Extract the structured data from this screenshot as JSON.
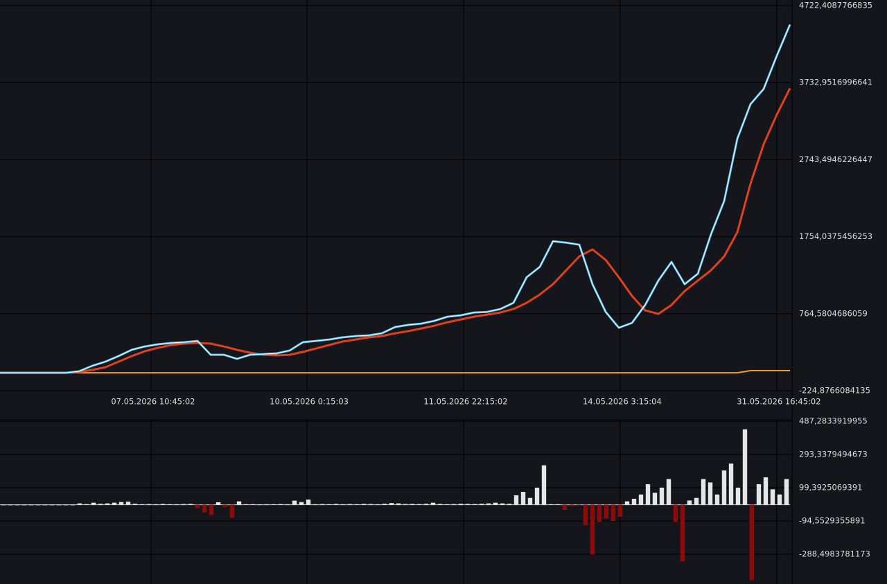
{
  "chart_data": [
    {
      "type": "line",
      "x": [
        0,
        1,
        2,
        3,
        4,
        5,
        6,
        7,
        8,
        9,
        10,
        11,
        12,
        13,
        14,
        15,
        16,
        17,
        18,
        19,
        20,
        21,
        22,
        23,
        24,
        25,
        26,
        27,
        28,
        29,
        30,
        31,
        32,
        33,
        34,
        35,
        36,
        37,
        38,
        39,
        40,
        41,
        42,
        43,
        44,
        45,
        46,
        47,
        48,
        49,
        50,
        51,
        52,
        53,
        54,
        55,
        56,
        57,
        58,
        59,
        60
      ],
      "series": [
        {
          "color": "#5bc0eb",
          "values": [
            6,
            6,
            6,
            6,
            6,
            6,
            24,
            95,
            148,
            220,
            300,
            344,
            371,
            389,
            398,
            415,
            237,
            237,
            184,
            237,
            246,
            255,
            291,
            398,
            415,
            433,
            460,
            477,
            486,
            513,
            593,
            620,
            637,
            673,
            726,
            744,
            780,
            788,
            824,
            904,
            1233,
            1366,
            1695,
            1677,
            1651,
            1144,
            788,
            584,
            646,
            877,
            1189,
            1429,
            1144,
            1277,
            1784,
            2211,
            3011,
            3455,
            3651,
            4078,
            4478
          ]
        },
        {
          "color": "#e0401a",
          "values": [
            6,
            6,
            6,
            6,
            6,
            6,
            15,
            42,
            77,
            148,
            220,
            282,
            326,
            362,
            380,
            389,
            380,
            344,
            300,
            264,
            237,
            229,
            237,
            273,
            317,
            362,
            406,
            433,
            460,
            477,
            513,
            540,
            575,
            611,
            655,
            691,
            726,
            753,
            780,
            824,
            904,
            1011,
            1144,
            1322,
            1500,
            1589,
            1455,
            1233,
            993,
            806,
            762,
            877,
            1055,
            1189,
            1322,
            1500,
            1811,
            2433,
            2940,
            3322,
            3660
          ]
        },
        {
          "color": "#f0a030",
          "values": [
            6,
            6,
            6,
            6,
            6,
            6,
            6,
            6,
            6,
            6,
            6,
            6,
            6,
            6,
            6,
            6,
            6,
            6,
            6,
            6,
            6,
            6,
            6,
            6,
            6,
            6,
            6,
            6,
            6,
            6,
            6,
            6,
            6,
            6,
            6,
            6,
            6,
            6,
            6,
            6,
            6,
            6,
            6,
            6,
            6,
            6,
            6,
            6,
            6,
            6,
            6,
            6,
            6,
            6,
            6,
            6,
            6,
            33,
            33,
            33,
            33
          ]
        }
      ],
      "xlim": [
        0,
        60
      ],
      "xticks": [
        {
          "value": 11.47,
          "label": "07.05.2026 10:45:02"
        },
        {
          "value": 23.32,
          "label": "10.05.2026 0:15:03"
        },
        {
          "value": 35.21,
          "label": "11.05.2026 22:15:02"
        },
        {
          "value": 47.1,
          "label": "14.05.2026 3:15:04"
        },
        {
          "value": 59,
          "label": "31.05.2026 16:45:02"
        }
      ],
      "ylim": [
        -224.8766084135,
        4722.4087766835
      ],
      "yticks": [
        {
          "value": 4722.4087766835,
          "label": "4722,4087766835"
        },
        {
          "value": 3732.9516996641,
          "label": "3732,9516996641"
        },
        {
          "value": 2743.4946226447,
          "label": "2743,4946226447"
        },
        {
          "value": 1754.0375456253,
          "label": "1754,0375456253"
        },
        {
          "value": 764.5804686059,
          "label": "764,5804686059"
        },
        {
          "value": -224.8766084135,
          "label": "-224,8766084135"
        }
      ],
      "grid": true
    },
    {
      "type": "bar",
      "values": [
        1,
        1,
        1,
        1,
        1,
        1,
        1,
        1,
        1,
        1,
        1,
        8,
        4,
        12,
        6,
        8,
        12,
        16,
        18,
        6,
        3,
        4,
        3,
        5,
        3,
        3,
        4,
        5,
        -20,
        -45,
        -60,
        15,
        -15,
        -75,
        20,
        3,
        3,
        2,
        3,
        3,
        4,
        3,
        24,
        16,
        30,
        3,
        4,
        3,
        5,
        3,
        4,
        3,
        5,
        4,
        3,
        6,
        10,
        8,
        4,
        5,
        4,
        6,
        12,
        5,
        3,
        4,
        6,
        5,
        4,
        6,
        8,
        12,
        8,
        6,
        55,
        75,
        40,
        100,
        230,
        3,
        3,
        -30,
        -8,
        -5,
        -120,
        -290,
        -100,
        -80,
        -95,
        -70,
        20,
        35,
        60,
        120,
        70,
        100,
        150,
        -100,
        -330,
        25,
        40,
        150,
        130,
        60,
        200,
        240,
        100,
        440,
        -440,
        120,
        160,
        90,
        60,
        150
      ],
      "up_color": "#e6e6e6",
      "down_color": "#8b0a0a",
      "ylim": [
        -462,
        487.2833919955
      ],
      "yticks": [
        {
          "value": 487.2833919955,
          "label": "487,2833919955"
        },
        {
          "value": 293.3379494673,
          "label": "293,3379494673"
        },
        {
          "value": 99.3925069391,
          "label": "99,3925069391"
        },
        {
          "value": -94.5529355891,
          "label": "-94,5529355891"
        },
        {
          "value": -288.4983781173,
          "label": "-288,4983781173"
        }
      ],
      "grid": true
    }
  ]
}
